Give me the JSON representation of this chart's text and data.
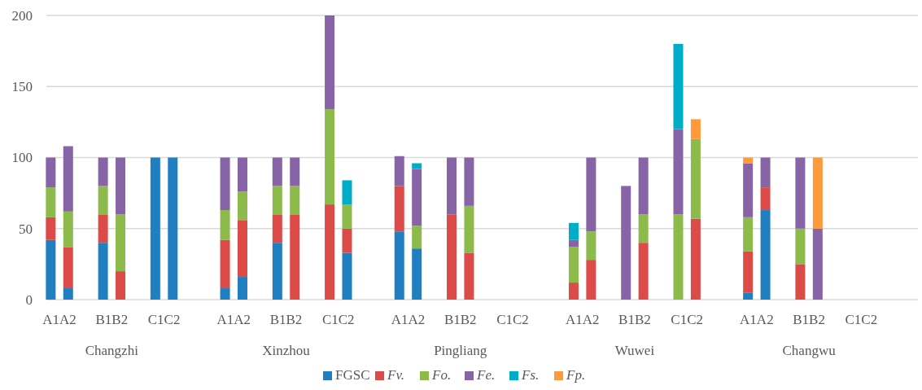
{
  "chart_data": {
    "type": "bar",
    "stacked": true,
    "categories": [
      null,
      "A1A2",
      null,
      null,
      null,
      null,
      null,
      "B1B2",
      null,
      null,
      null,
      null,
      null,
      "C1C2",
      null,
      null,
      null,
      null,
      null,
      null,
      null,
      "A1A2",
      null,
      null,
      null,
      null,
      null,
      "B1B2",
      null,
      null,
      null,
      null,
      null,
      "C1C2",
      null,
      null,
      null,
      null,
      null,
      null,
      null,
      "A1A2",
      null,
      null,
      null,
      null,
      null,
      "B1B2",
      null,
      null,
      null,
      null,
      null,
      "C1C2",
      null,
      null,
      null,
      null,
      null,
      null,
      null,
      "A1A2",
      null,
      null,
      null,
      null,
      null,
      "B1B2",
      null,
      null,
      null,
      null,
      null,
      "C1C2",
      null,
      null,
      null,
      null,
      null,
      null,
      null,
      "A1A2",
      null,
      null,
      null,
      null,
      null,
      "B1B2",
      null,
      null,
      null,
      null,
      null,
      "C1C2",
      null,
      null,
      null,
      null,
      null,
      null
    ],
    "series": [
      {
        "name": "FGSC",
        "color": "#1f7fc0",
        "values": [
          42,
          null,
          8,
          null,
          null,
          null,
          40,
          null,
          null,
          null,
          null,
          null,
          100,
          null,
          100,
          null,
          null,
          null,
          null,
          null,
          8,
          null,
          16,
          null,
          null,
          null,
          40,
          null,
          null,
          null,
          null,
          null,
          null,
          null,
          33,
          null,
          null,
          null,
          null,
          null,
          48,
          null,
          36,
          null,
          null,
          null,
          null,
          null,
          null,
          null,
          null,
          null,
          null,
          null,
          null,
          null,
          null,
          null,
          null,
          null,
          null,
          null,
          null,
          null,
          null,
          null,
          null,
          null,
          null,
          null,
          null,
          null,
          null,
          null,
          null,
          null,
          null,
          null,
          null,
          null,
          5,
          null,
          63,
          null,
          null,
          null,
          null,
          null,
          null,
          null,
          null,
          null,
          null,
          null,
          null,
          null,
          null,
          null,
          null,
          null
        ]
      },
      {
        "name": "Fv.",
        "color": "#dc4b48",
        "values": [
          16,
          null,
          29,
          null,
          null,
          null,
          20,
          null,
          20,
          null,
          null,
          null,
          null,
          null,
          null,
          null,
          null,
          null,
          null,
          null,
          34,
          null,
          40,
          null,
          null,
          null,
          20,
          null,
          60,
          null,
          null,
          null,
          67,
          null,
          17,
          null,
          null,
          null,
          null,
          null,
          32,
          null,
          null,
          null,
          null,
          null,
          60,
          null,
          33,
          null,
          null,
          null,
          null,
          null,
          null,
          null,
          null,
          null,
          null,
          null,
          12,
          null,
          28,
          null,
          null,
          null,
          null,
          null,
          40,
          null,
          null,
          null,
          null,
          null,
          57,
          null,
          null,
          null,
          null,
          null,
          29,
          null,
          16,
          null,
          null,
          null,
          25,
          null,
          null,
          null,
          null,
          null,
          null,
          null,
          null,
          null,
          null,
          null,
          null,
          null
        ]
      },
      {
        "name": "Fo.",
        "color": "#8cba4b",
        "values": [
          21,
          null,
          25,
          null,
          null,
          null,
          20,
          null,
          40,
          null,
          null,
          null,
          null,
          null,
          null,
          null,
          null,
          null,
          null,
          null,
          21,
          null,
          20,
          null,
          null,
          null,
          20,
          null,
          20,
          null,
          null,
          null,
          67,
          null,
          17,
          null,
          null,
          null,
          null,
          null,
          null,
          null,
          16,
          null,
          null,
          null,
          null,
          null,
          33,
          null,
          null,
          null,
          null,
          null,
          null,
          null,
          null,
          null,
          null,
          null,
          25,
          null,
          20,
          null,
          null,
          null,
          null,
          null,
          20,
          null,
          null,
          null,
          60,
          null,
          56,
          null,
          null,
          null,
          null,
          null,
          24,
          null,
          null,
          null,
          null,
          null,
          25,
          null,
          null,
          null,
          null,
          null,
          null,
          null,
          null,
          null,
          null,
          null,
          null,
          null
        ]
      },
      {
        "name": "Fe.",
        "color": "#8764a6",
        "values": [
          21,
          null,
          46,
          null,
          null,
          null,
          20,
          null,
          40,
          null,
          null,
          null,
          null,
          null,
          null,
          null,
          null,
          null,
          null,
          null,
          37,
          null,
          24,
          null,
          null,
          null,
          20,
          null,
          20,
          null,
          null,
          null,
          66,
          null,
          null,
          null,
          null,
          null,
          null,
          null,
          21,
          null,
          40,
          null,
          null,
          null,
          40,
          null,
          34,
          null,
          null,
          null,
          null,
          null,
          null,
          null,
          null,
          null,
          null,
          null,
          5,
          null,
          52,
          null,
          null,
          null,
          80,
          null,
          40,
          null,
          null,
          null,
          60,
          null,
          null,
          null,
          null,
          null,
          null,
          null,
          38,
          null,
          21,
          null,
          null,
          null,
          50,
          null,
          50,
          null,
          null,
          null,
          null,
          null,
          null,
          null,
          null,
          null,
          null,
          null
        ]
      },
      {
        "name": "Fs.",
        "color": "#00adc6",
        "values": [
          null,
          null,
          null,
          null,
          null,
          null,
          null,
          null,
          null,
          null,
          null,
          null,
          null,
          null,
          null,
          null,
          null,
          null,
          null,
          null,
          null,
          null,
          null,
          null,
          null,
          null,
          null,
          null,
          null,
          null,
          null,
          null,
          null,
          null,
          17,
          null,
          null,
          null,
          null,
          null,
          null,
          null,
          4,
          null,
          null,
          null,
          null,
          null,
          null,
          null,
          null,
          null,
          null,
          null,
          null,
          null,
          null,
          null,
          null,
          null,
          12,
          null,
          null,
          null,
          null,
          null,
          null,
          null,
          null,
          null,
          null,
          null,
          60,
          null,
          null,
          null,
          null,
          null,
          null,
          null,
          null,
          null,
          null,
          null,
          null,
          null,
          null,
          null,
          null,
          null,
          null,
          null,
          null,
          null,
          null,
          null,
          null,
          null,
          null,
          null
        ]
      },
      {
        "name": "Fp.",
        "color": "#ff9a3c",
        "values": [
          null,
          null,
          null,
          null,
          null,
          null,
          null,
          null,
          null,
          null,
          null,
          null,
          null,
          null,
          null,
          null,
          null,
          null,
          null,
          null,
          null,
          null,
          null,
          null,
          null,
          null,
          null,
          null,
          null,
          null,
          null,
          null,
          null,
          null,
          null,
          null,
          null,
          null,
          null,
          null,
          null,
          null,
          null,
          null,
          null,
          null,
          null,
          null,
          null,
          null,
          null,
          null,
          null,
          null,
          null,
          null,
          null,
          null,
          null,
          null,
          null,
          null,
          null,
          null,
          null,
          null,
          null,
          null,
          null,
          null,
          null,
          null,
          null,
          null,
          14,
          null,
          null,
          null,
          null,
          null,
          4,
          null,
          null,
          null,
          null,
          null,
          null,
          null,
          50,
          null,
          null,
          null,
          null,
          null,
          null,
          null,
          null,
          null,
          null,
          null
        ]
      }
    ],
    "annotations": [
      "Changzhi",
      "Xinzhou",
      "Pingliang",
      "Wuwei",
      "Changwu"
    ],
    "ylim": [
      0,
      200
    ],
    "yticks": [
      0,
      50,
      100,
      150,
      200
    ],
    "grid": "y",
    "legend": "bottom"
  }
}
